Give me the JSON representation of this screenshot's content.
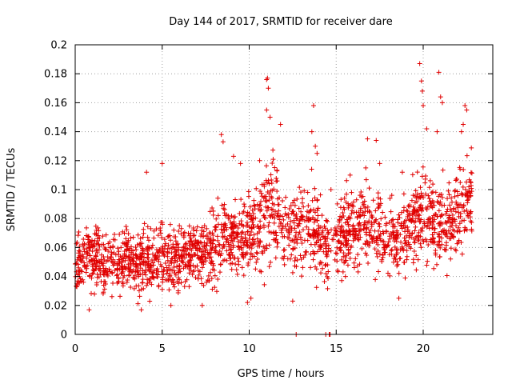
{
  "chart_data": {
    "type": "scatter",
    "title": "Day 144 of 2017, SRMTID for receiver dare",
    "xlabel": "GPS time / hours",
    "ylabel": "SRMTID / TECUs",
    "xlim": [
      0,
      24.0
    ],
    "ylim": [
      0,
      0.2
    ],
    "xticks": [
      "0",
      "5",
      "10",
      "15",
      "20"
    ],
    "xtick_values": [
      0,
      5,
      10,
      15,
      20
    ],
    "yticks": [
      "0",
      "0.02",
      "0.04",
      "0.06",
      "0.08",
      "0.1",
      "0.12",
      "0.14",
      "0.16",
      "0.18",
      "0.2"
    ],
    "ytick_values": [
      0,
      0.02,
      0.04,
      0.06,
      0.08,
      0.1,
      0.12,
      0.14,
      0.16,
      0.18,
      0.2
    ],
    "grid": true,
    "marker": "plus",
    "color": "#e00000",
    "series": [
      {
        "name": "SRMTID",
        "description": "dense scatter; values listed as [hour, center, spread] envelope plus notable outliers",
        "envelope": [
          [
            0.0,
            0.05,
            0.014
          ],
          [
            0.5,
            0.052,
            0.014
          ],
          [
            1.0,
            0.055,
            0.015
          ],
          [
            1.5,
            0.05,
            0.014
          ],
          [
            2.0,
            0.048,
            0.014
          ],
          [
            2.5,
            0.05,
            0.014
          ],
          [
            3.0,
            0.053,
            0.015
          ],
          [
            3.5,
            0.048,
            0.014
          ],
          [
            4.0,
            0.052,
            0.016
          ],
          [
            4.5,
            0.05,
            0.015
          ],
          [
            5.0,
            0.055,
            0.017
          ],
          [
            5.5,
            0.05,
            0.015
          ],
          [
            6.0,
            0.052,
            0.015
          ],
          [
            6.5,
            0.054,
            0.015
          ],
          [
            7.0,
            0.056,
            0.016
          ],
          [
            7.5,
            0.058,
            0.016
          ],
          [
            8.0,
            0.062,
            0.017
          ],
          [
            8.5,
            0.07,
            0.018
          ],
          [
            9.0,
            0.068,
            0.018
          ],
          [
            9.5,
            0.066,
            0.018
          ],
          [
            10.0,
            0.07,
            0.019
          ],
          [
            10.5,
            0.072,
            0.02
          ],
          [
            11.0,
            0.082,
            0.022
          ],
          [
            11.5,
            0.085,
            0.022
          ],
          [
            12.0,
            0.075,
            0.02
          ],
          [
            12.5,
            0.068,
            0.018
          ],
          [
            13.0,
            0.072,
            0.019
          ],
          [
            13.5,
            0.078,
            0.02
          ],
          [
            14.0,
            0.07,
            0.019
          ],
          [
            14.5,
            0.06,
            0.016
          ],
          [
            15.0,
            0.065,
            0.017
          ],
          [
            15.5,
            0.07,
            0.018
          ],
          [
            16.0,
            0.072,
            0.019
          ],
          [
            16.5,
            0.075,
            0.019
          ],
          [
            17.0,
            0.072,
            0.019
          ],
          [
            17.5,
            0.068,
            0.018
          ],
          [
            18.0,
            0.066,
            0.018
          ],
          [
            18.5,
            0.064,
            0.018
          ],
          [
            19.0,
            0.07,
            0.019
          ],
          [
            19.5,
            0.078,
            0.02
          ],
          [
            20.0,
            0.085,
            0.022
          ],
          [
            20.5,
            0.082,
            0.021
          ],
          [
            21.0,
            0.08,
            0.021
          ],
          [
            21.5,
            0.075,
            0.02
          ],
          [
            22.0,
            0.085,
            0.021
          ],
          [
            22.5,
            0.092,
            0.02
          ]
        ],
        "points": [
          [
            0.8,
            0.017
          ],
          [
            3.8,
            0.017
          ],
          [
            11.0,
            0.176
          ],
          [
            11.05,
            0.177
          ],
          [
            11.1,
            0.17
          ],
          [
            11.0,
            0.155
          ],
          [
            11.2,
            0.15
          ],
          [
            11.8,
            0.145
          ],
          [
            12.5,
            0.023
          ],
          [
            13.7,
            0.158
          ],
          [
            13.6,
            0.14
          ],
          [
            13.8,
            0.13
          ],
          [
            13.9,
            0.125
          ],
          [
            16.8,
            0.135
          ],
          [
            17.3,
            0.134
          ],
          [
            19.8,
            0.187
          ],
          [
            19.9,
            0.175
          ],
          [
            19.95,
            0.168
          ],
          [
            20.0,
            0.158
          ],
          [
            20.2,
            0.142
          ],
          [
            20.9,
            0.181
          ],
          [
            21.0,
            0.164
          ],
          [
            21.1,
            0.16
          ],
          [
            20.8,
            0.14
          ],
          [
            22.4,
            0.158
          ],
          [
            22.5,
            0.155
          ],
          [
            22.3,
            0.145
          ],
          [
            22.2,
            0.14
          ],
          [
            8.4,
            0.138
          ],
          [
            8.5,
            0.133
          ],
          [
            9.1,
            0.123
          ],
          [
            9.5,
            0.118
          ],
          [
            5.0,
            0.118
          ],
          [
            4.1,
            0.112
          ],
          [
            10.6,
            0.12
          ],
          [
            14.7,
            0.1
          ],
          [
            15.8,
            0.11
          ],
          [
            16.7,
            0.115
          ],
          [
            17.5,
            0.118
          ],
          [
            18.8,
            0.112
          ],
          [
            7.3,
            0.02
          ],
          [
            5.5,
            0.02
          ],
          [
            9.9,
            0.022
          ],
          [
            10.1,
            0.025
          ],
          [
            18.6,
            0.025
          ],
          [
            12.7,
            0.0
          ],
          [
            14.4,
            0.0
          ],
          [
            14.6,
            0.0
          ],
          [
            14.65,
            0.0
          ]
        ]
      }
    ]
  }
}
